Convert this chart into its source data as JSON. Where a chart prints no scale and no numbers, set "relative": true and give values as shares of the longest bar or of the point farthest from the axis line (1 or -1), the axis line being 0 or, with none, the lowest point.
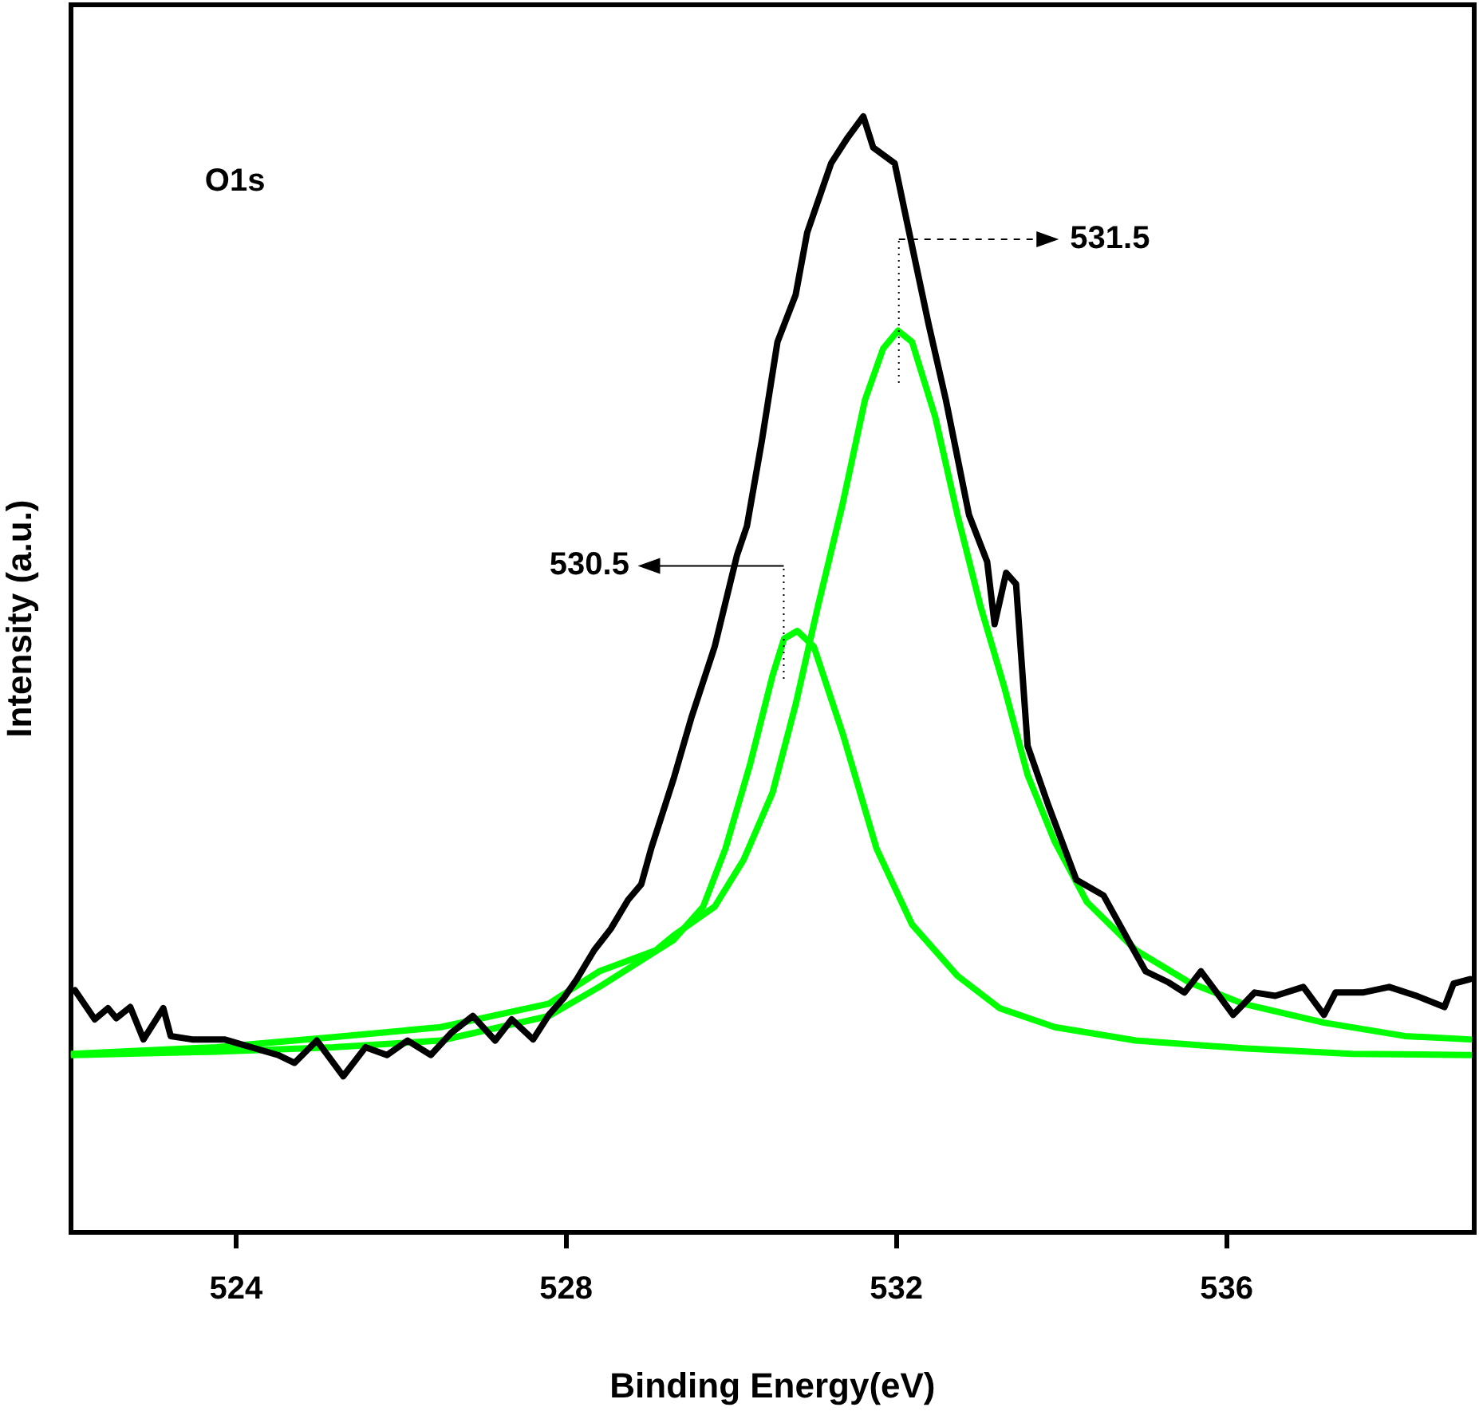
{
  "chart_data": {
    "type": "line",
    "xlabel": "Binding Energy(eV)",
    "ylabel": "Intensity (a.u.)",
    "relative": true,
    "xlim": [
      522,
      539
    ],
    "xticks": [
      524,
      528,
      532,
      536
    ],
    "grid": false,
    "legend": false,
    "marker": "none",
    "line_style": "solid",
    "annotations": [
      "O1s",
      "531.5",
      "530.5"
    ],
    "series": [
      {
        "color": "#000000",
        "x": [
          522.05,
          522.29,
          522.45,
          522.55,
          522.72,
          522.88,
          523.12,
          523.21,
          523.47,
          523.86,
          524.51,
          524.71,
          524.98,
          525.3,
          525.57,
          525.83,
          526.08,
          526.36,
          526.61,
          526.87,
          527.14,
          527.34,
          527.6,
          527.79,
          527.97,
          528.13,
          528.34,
          528.54,
          528.75,
          528.91,
          529.03,
          529.3,
          529.52,
          529.8,
          530.07,
          530.19,
          530.37,
          530.56,
          530.78,
          530.92,
          531.21,
          531.41,
          531.6,
          531.72,
          531.98,
          532.11,
          532.39,
          532.6,
          532.88,
          533.1,
          533.19,
          533.33,
          533.45,
          533.59,
          533.84,
          534.18,
          534.51,
          534.83,
          535.02,
          535.3,
          535.49,
          535.69,
          536.08,
          536.34,
          536.59,
          536.93,
          537.18,
          537.32,
          537.65,
          537.97,
          538.3,
          538.64,
          538.75,
          538.95
        ],
        "values": [
          0.217,
          0.191,
          0.201,
          0.192,
          0.202,
          0.173,
          0.201,
          0.176,
          0.173,
          0.173,
          0.159,
          0.152,
          0.172,
          0.14,
          0.166,
          0.159,
          0.172,
          0.159,
          0.179,
          0.194,
          0.172,
          0.191,
          0.173,
          0.195,
          0.21,
          0.227,
          0.253,
          0.272,
          0.298,
          0.312,
          0.344,
          0.406,
          0.462,
          0.525,
          0.607,
          0.633,
          0.709,
          0.798,
          0.84,
          0.896,
          0.958,
          0.981,
          1,
          0.972,
          0.958,
          0.912,
          0.814,
          0.746,
          0.643,
          0.601,
          0.545,
          0.591,
          0.581,
          0.436,
          0.383,
          0.316,
          0.302,
          0.259,
          0.234,
          0.224,
          0.215,
          0.234,
          0.195,
          0.215,
          0.212,
          0.22,
          0.195,
          0.215,
          0.215,
          0.22,
          0.212,
          0.202,
          0.223,
          0.227
        ]
      },
      {
        "color": "#00ff00",
        "x": [
          522.02,
          523.76,
          525.18,
          526.48,
          527.79,
          528.4,
          529.09,
          529.3,
          529.8,
          530.15,
          530.5,
          530.78,
          531.05,
          531.35,
          531.62,
          531.84,
          532.02,
          532.19,
          532.47,
          532.74,
          533.02,
          533.31,
          533.59,
          533.92,
          534.31,
          534.9,
          535.55,
          536.2,
          537.18,
          538.16,
          538.95
        ],
        "values": [
          0.16,
          0.166,
          0.175,
          0.184,
          0.205,
          0.234,
          0.253,
          0.266,
          0.292,
          0.334,
          0.394,
          0.473,
          0.561,
          0.653,
          0.746,
          0.792,
          0.808,
          0.798,
          0.731,
          0.643,
          0.561,
          0.488,
          0.41,
          0.35,
          0.296,
          0.253,
          0.224,
          0.205,
          0.188,
          0.176,
          0.173
        ]
      },
      {
        "color": "#00ff00",
        "x": [
          522.02,
          523.76,
          525.18,
          526.48,
          527.79,
          528.4,
          529.3,
          529.66,
          529.93,
          530.23,
          530.5,
          530.64,
          530.8,
          531.0,
          531.35,
          531.76,
          532.19,
          532.74,
          533.25,
          533.92,
          534.9,
          536.2,
          537.52,
          538.95
        ],
        "values": [
          0.159,
          0.162,
          0.166,
          0.172,
          0.194,
          0.22,
          0.262,
          0.292,
          0.344,
          0.42,
          0.499,
          0.532,
          0.539,
          0.525,
          0.447,
          0.344,
          0.276,
          0.23,
          0.201,
          0.184,
          0.172,
          0.165,
          0.16,
          0.159
        ]
      }
    ]
  }
}
